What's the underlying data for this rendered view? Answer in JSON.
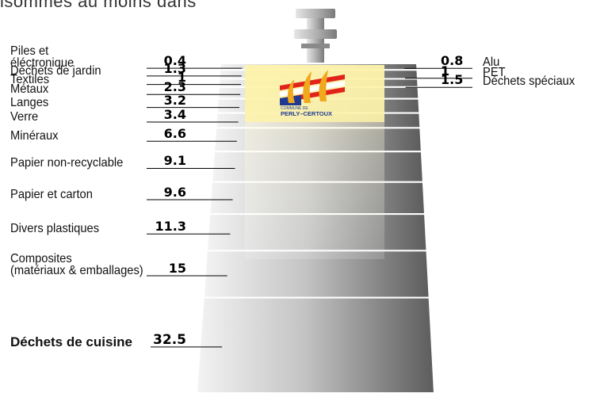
{
  "intro_text": "isommes au moins dans",
  "logo": {
    "line1": "COMMUNE DE",
    "line2": "PERLY–CERTOUX",
    "colors": {
      "wheat": "#f0a81c",
      "red": "#e2231a",
      "blue": "#1f3a93",
      "badge_bg": "#fbf3b2"
    }
  },
  "colors": {
    "bar_light": "#f4f4f4",
    "bar_dark": "#5e5e5e",
    "window_tint": "#fffbcf",
    "line": "#000000"
  },
  "chart_data": {
    "type": "bar",
    "title": "",
    "left_series": [
      {
        "label": "Piles et\néléctronique",
        "value_label": "0.4",
        "value": 0.4
      },
      {
        "label": "Déchets de jardin",
        "value_label": "1.3",
        "value": 1.3
      },
      {
        "label": "Textiles",
        "value_label": "1",
        "value": 1
      },
      {
        "label": "Métaux",
        "value_label": "2.3",
        "value": 2.3
      },
      {
        "label": "Langes",
        "value_label": "3.2",
        "value": 3.2
      },
      {
        "label": "Verre",
        "value_label": "3.4",
        "value": 3.4
      },
      {
        "label": "Minéraux",
        "value_label": "6.6",
        "value": 6.6
      },
      {
        "label": "Papier non-recyclable",
        "value_label": "9.1",
        "value": 9.1
      },
      {
        "label": "Papier et carton",
        "value_label": "9.6",
        "value": 9.6
      },
      {
        "label": "Divers plastiques",
        "value_label": "11.3",
        "value": 11.3
      },
      {
        "label": "Composites\n(matériaux & emballages)",
        "value_label": "15",
        "value": 15
      },
      {
        "label": "Déchets de cuisine",
        "value_label": "32.5",
        "value": 32.5,
        "emphasis": true
      }
    ],
    "right_series": [
      {
        "label": "Alu",
        "value_label": "0.8",
        "value": 0.8
      },
      {
        "label": "PET",
        "value_label": "1",
        "value": 1
      },
      {
        "label": "Déchets spéciaux",
        "value_label": "1.5",
        "value": 1.5
      }
    ]
  }
}
